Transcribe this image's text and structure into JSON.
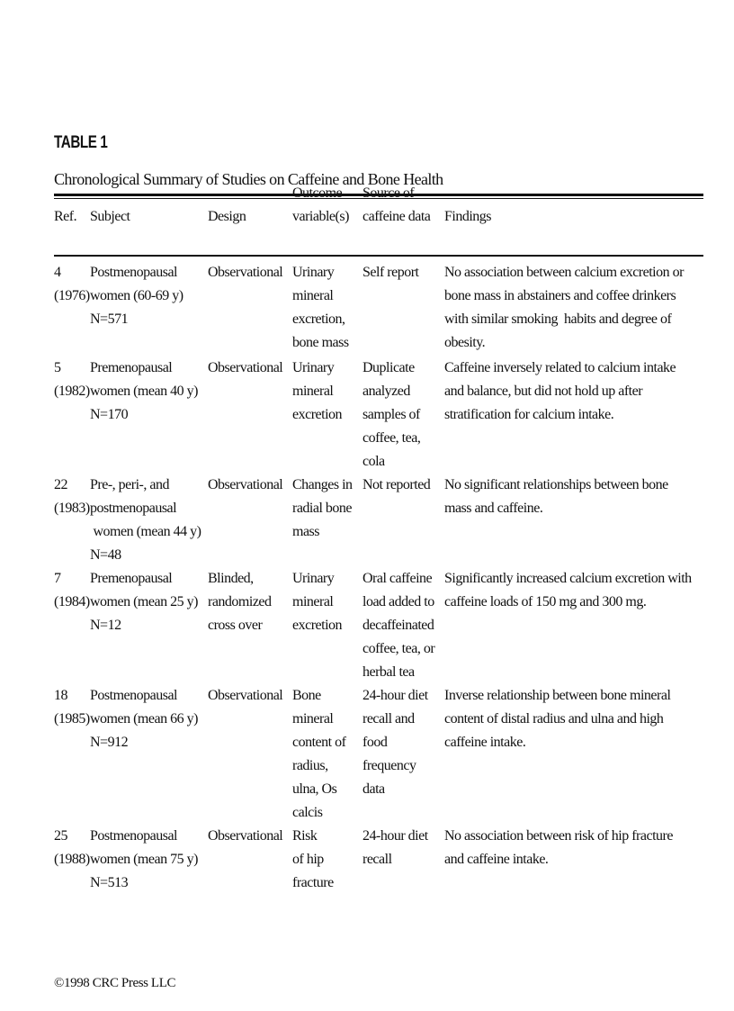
{
  "table": {
    "label": "TABLE 1",
    "caption": "Chronological Summary of Studies on Caffeine and Bone Health",
    "headers": [
      "Ref.",
      "Subject",
      "Design",
      "Outcome\nvariable(s)",
      "Source of\ncaffeine data",
      "Findings"
    ],
    "rows": [
      [
        "4\n(1976)",
        "Postmenopausal\nwomen (60-69 y)\nN=571",
        "Observational",
        "Urinary\nmineral\nexcretion,\nbone mass",
        "Self report",
        "No association between calcium excretion or\nbone mass in abstainers and coffee drinkers\nwith similar smoking  habits and degree of\nobesity."
      ],
      [
        "5\n(1982)",
        "Premenopausal\nwomen (mean 40 y)\nN=170",
        "Observational",
        "Urinary\nmineral\nexcretion",
        "Duplicate\nanalyzed\nsamples of\ncoffee, tea,\ncola",
        "Caffeine inversely related to calcium intake\nand balance, but did not hold up after\nstratification for calcium intake."
      ],
      [
        "22\n(1983)",
        "Pre-, peri-, and\npostmenopausal\n women (mean 44 y)\nN=48",
        "Observational",
        "Changes in\nradial bone\nmass",
        "Not reported",
        "No significant relationships between bone\nmass and caffeine."
      ],
      [
        "7\n(1984)",
        "Premenopausal\nwomen (mean 25 y)\nN=12",
        "Blinded,\nrandomized\ncross over",
        "Urinary\nmineral\nexcretion",
        "Oral caffeine\nload added to\ndecaffeinated\ncoffee, tea, or\nherbal tea",
        "Significantly increased calcium excretion with\ncaffeine loads of 150 mg and 300 mg."
      ],
      [
        "18\n(1985)",
        "Postmenopausal\nwomen (mean 66 y)\nN=912",
        "Observational",
        "Bone\nmineral\ncontent of\nradius,\nulna, Os\ncalcis",
        "24-hour diet\nrecall and\nfood\nfrequency\ndata",
        "Inverse relationship between bone mineral\ncontent of distal radius and ulna and high\ncaffeine intake."
      ],
      [
        "25\n(1988)",
        "Postmenopausal\nwomen (mean 75 y)\nN=513",
        "Observational",
        "Risk\nof hip\nfracture",
        "24-hour diet\nrecall",
        "No association between risk of hip fracture\nand caffeine intake."
      ]
    ]
  },
  "footer": "©1998 CRC Press LLC"
}
